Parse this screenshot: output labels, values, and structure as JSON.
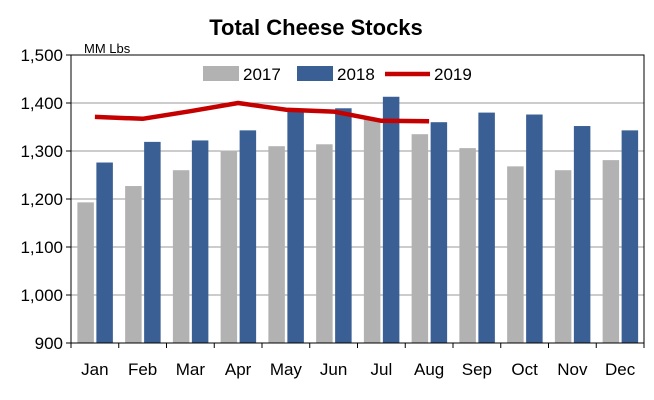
{
  "chart_data": {
    "type": "bar",
    "title": "Total Cheese Stocks",
    "unit_label": "MM Lbs",
    "xlabel": "",
    "ylabel": "",
    "ylim": [
      900,
      1500
    ],
    "yticks": [
      900,
      1000,
      1100,
      1200,
      1300,
      1400,
      1500
    ],
    "ytick_labels": [
      "900",
      "1,000",
      "1,100",
      "1,200",
      "1,300",
      "1,400",
      "1,500"
    ],
    "grid": true,
    "legend_position": "top-center",
    "categories": [
      "Jan",
      "Feb",
      "Mar",
      "Apr",
      "May",
      "Jun",
      "Jul",
      "Aug",
      "Sep",
      "Oct",
      "Nov",
      "Dec"
    ],
    "series": [
      {
        "name": "2017",
        "type": "bar",
        "color": "#b2b2b2",
        "values": [
          1193,
          1227,
          1260,
          1301,
          1310,
          1314,
          1368,
          1335,
          1306,
          1268,
          1260,
          1281
        ]
      },
      {
        "name": "2018",
        "type": "bar",
        "color": "#3a5f94",
        "values": [
          1276,
          1319,
          1322,
          1343,
          1385,
          1389,
          1413,
          1360,
          1380,
          1376,
          1352,
          1343
        ]
      },
      {
        "name": "2019",
        "type": "line",
        "color": "#c40000",
        "values": [
          1371,
          1367,
          1383,
          1400,
          1386,
          1382,
          1363,
          1362,
          null,
          null,
          null,
          null
        ]
      }
    ]
  }
}
